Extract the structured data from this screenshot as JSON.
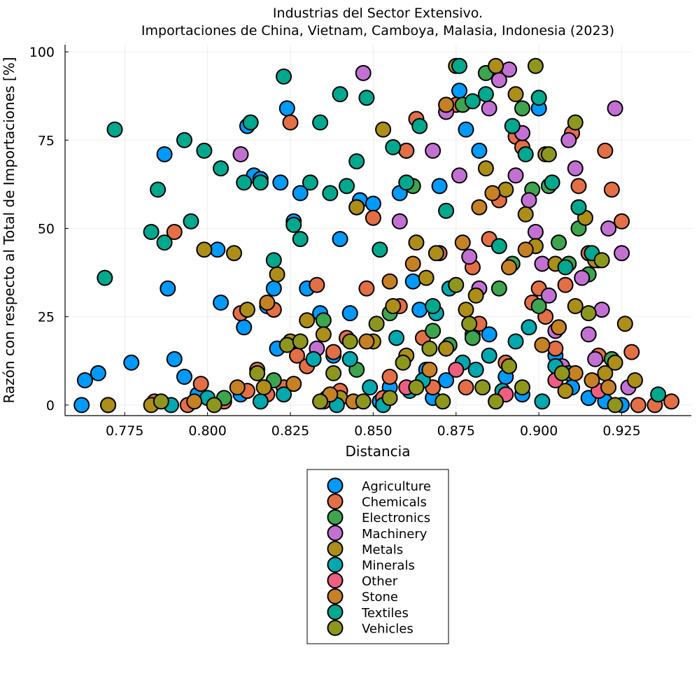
{
  "chart_data": {
    "type": "scatter",
    "title": "Industrias del Sector Extensivo.",
    "subtitle": "Importaciones de China, Vietnam, Camboya, Malasia, Indonesia (2023)",
    "xlabel": "Distancia",
    "ylabel": "Razón con respecto al Total de Importaciones [%]",
    "xlim": [
      0.757,
      0.946
    ],
    "ylim": [
      -3,
      102
    ],
    "xticks": [
      0.775,
      0.8,
      0.825,
      0.85,
      0.875,
      0.9,
      0.925
    ],
    "xtick_labels": [
      "0.775",
      "0.800",
      "0.825",
      "0.850",
      "0.875",
      "0.900",
      "0.925"
    ],
    "yticks": [
      0,
      25,
      50,
      75,
      100
    ],
    "ytick_labels": [
      "0",
      "25",
      "50",
      "75",
      "100"
    ],
    "grid": true,
    "legend_position": "bottom",
    "series": [
      {
        "name": "Agriculture",
        "color": "#009AFA",
        "x": [
          0.762,
          0.763,
          0.767,
          0.777,
          0.787,
          0.788,
          0.79,
          0.793,
          0.797,
          0.803,
          0.804,
          0.81,
          0.811,
          0.812,
          0.814,
          0.816,
          0.818,
          0.82,
          0.821,
          0.822,
          0.824,
          0.826,
          0.828,
          0.83,
          0.834,
          0.836,
          0.838,
          0.84,
          0.843,
          0.846,
          0.85,
          0.852,
          0.855,
          0.858,
          0.86,
          0.862,
          0.864,
          0.866,
          0.868,
          0.87,
          0.872,
          0.876,
          0.878,
          0.88,
          0.882,
          0.885,
          0.89,
          0.895,
          0.9,
          0.905,
          0.91,
          0.915,
          0.92,
          0.925
        ],
        "y": [
          0,
          7,
          9,
          12,
          71,
          33,
          13,
          8,
          3,
          44,
          29,
          3,
          22,
          79,
          65,
          64,
          28,
          33,
          16,
          63,
          84,
          52,
          60,
          33,
          26,
          2,
          14,
          47,
          26,
          58,
          57,
          1,
          5,
          60,
          72,
          35,
          27,
          10,
          2,
          62,
          7,
          89,
          78,
          20,
          72,
          20,
          8,
          3,
          84,
          14,
          5,
          2,
          1,
          0
        ]
      },
      {
        "name": "Chemicals",
        "color": "#E26F46",
        "x": [
          0.77,
          0.784,
          0.79,
          0.794,
          0.798,
          0.805,
          0.81,
          0.812,
          0.815,
          0.818,
          0.82,
          0.823,
          0.825,
          0.827,
          0.83,
          0.833,
          0.835,
          0.838,
          0.84,
          0.842,
          0.845,
          0.848,
          0.85,
          0.853,
          0.855,
          0.858,
          0.86,
          0.863,
          0.865,
          0.868,
          0.87,
          0.872,
          0.875,
          0.878,
          0.88,
          0.882,
          0.885,
          0.888,
          0.89,
          0.893,
          0.895,
          0.898,
          0.9,
          0.902,
          0.905,
          0.908,
          0.91,
          0.912,
          0.915,
          0.918,
          0.92,
          0.922,
          0.925,
          0.928,
          0.93,
          0.935,
          0.94
        ],
        "y": [
          0,
          1,
          49,
          0,
          6,
          1,
          26,
          4,
          10,
          3,
          27,
          5,
          80,
          14,
          11,
          34,
          1,
          15,
          4,
          19,
          56,
          33,
          53,
          2,
          8,
          28,
          72,
          81,
          19,
          5,
          43,
          16,
          85,
          5,
          39,
          23,
          47,
          58,
          12,
          76,
          73,
          29,
          33,
          25,
          16,
          34,
          77,
          62,
          43,
          14,
          72,
          61,
          52,
          15,
          0,
          0,
          1
        ]
      },
      {
        "name": "Electronics",
        "color": "#3EA44E",
        "x": [
          0.805,
          0.82,
          0.835,
          0.845,
          0.855,
          0.862,
          0.868,
          0.873,
          0.877,
          0.88,
          0.884,
          0.888,
          0.892,
          0.895,
          0.898,
          0.9,
          0.903,
          0.906,
          0.909,
          0.912,
          0.915,
          0.918,
          0.922
        ],
        "y": [
          2,
          7,
          24,
          10,
          26,
          62,
          21,
          17,
          85,
          19,
          94,
          33,
          40,
          84,
          61,
          28,
          62,
          46,
          40,
          50,
          37,
          41,
          13
        ]
      },
      {
        "name": "Machinery",
        "color": "#C271D2",
        "x": [
          0.81,
          0.833,
          0.847,
          0.858,
          0.868,
          0.872,
          0.876,
          0.879,
          0.882,
          0.885,
          0.888,
          0.891,
          0.893,
          0.895,
          0.897,
          0.899,
          0.901,
          0.903,
          0.905,
          0.907,
          0.909,
          0.911,
          0.913,
          0.915,
          0.917,
          0.919,
          0.921,
          0.923,
          0.925,
          0.927
        ],
        "y": [
          71,
          16,
          94,
          52,
          72,
          83,
          65,
          42,
          33,
          84,
          92,
          95,
          65,
          77,
          58,
          49,
          40,
          31,
          21,
          11,
          75,
          67,
          36,
          20,
          13,
          27,
          50,
          84,
          43,
          5
        ]
      },
      {
        "name": "Metals",
        "color": "#AC8E18",
        "x": [
          0.77,
          0.783,
          0.799,
          0.808,
          0.812,
          0.817,
          0.821,
          0.825,
          0.83,
          0.835,
          0.84,
          0.845,
          0.85,
          0.853,
          0.856,
          0.86,
          0.863,
          0.866,
          0.869,
          0.872,
          0.875,
          0.878,
          0.881,
          0.884,
          0.887,
          0.89,
          0.893,
          0.896,
          0.899,
          0.902,
          0.905,
          0.908,
          0.911,
          0.914,
          0.917,
          0.92,
          0.923,
          0.926,
          0.929
        ],
        "y": [
          0,
          0,
          44,
          43,
          27,
          5,
          37,
          18,
          24,
          20,
          2,
          56,
          18,
          78,
          28,
          14,
          46,
          36,
          43,
          16,
          96,
          27,
          31,
          67,
          96,
          61,
          88,
          54,
          45,
          71,
          40,
          4,
          28,
          53,
          41,
          9,
          12,
          23,
          7
        ]
      },
      {
        "name": "Minerals",
        "color": "#00A9AD",
        "x": [
          0.789,
          0.8,
          0.816,
          0.823,
          0.832,
          0.839,
          0.843,
          0.849,
          0.853,
          0.857,
          0.861,
          0.865,
          0.869,
          0.873,
          0.877,
          0.881,
          0.885,
          0.889,
          0.893,
          0.897,
          0.901,
          0.905,
          0.909
        ],
        "y": [
          0,
          2,
          1,
          3,
          13,
          0,
          13,
          5,
          0,
          19,
          4,
          7,
          26,
          33,
          12,
          10,
          14,
          4,
          18,
          22,
          1,
          11,
          9
        ]
      },
      {
        "name": "Other",
        "color": "#EC5F81",
        "x": [
          0.86,
          0.875,
          0.89,
          0.905,
          0.918
        ],
        "y": [
          5,
          10,
          3,
          7,
          4
        ]
      },
      {
        "name": "Stone",
        "color": "#C68125",
        "x": [
          0.796,
          0.809,
          0.818,
          0.826,
          0.837,
          0.844,
          0.848,
          0.855,
          0.862,
          0.867,
          0.872,
          0.877,
          0.882,
          0.886,
          0.891,
          0.896,
          0.901,
          0.906,
          0.911,
          0.916,
          0.921
        ],
        "y": [
          1,
          5,
          29,
          6,
          3,
          1,
          18,
          35,
          40,
          10,
          85,
          46,
          56,
          60,
          39,
          44,
          17,
          22,
          9,
          7,
          5
        ]
      },
      {
        "name": "Textiles",
        "color": "#00A98D",
        "x": [
          0.769,
          0.772,
          0.783,
          0.785,
          0.787,
          0.793,
          0.795,
          0.799,
          0.804,
          0.811,
          0.813,
          0.816,
          0.82,
          0.823,
          0.826,
          0.828,
          0.831,
          0.834,
          0.837,
          0.84,
          0.842,
          0.845,
          0.848,
          0.852,
          0.856,
          0.86,
          0.864,
          0.868,
          0.872,
          0.876,
          0.88,
          0.884,
          0.888,
          0.892,
          0.896,
          0.9,
          0.904,
          0.908,
          0.912,
          0.916,
          0.936
        ],
        "y": [
          36,
          78,
          49,
          61,
          46,
          75,
          52,
          72,
          67,
          63,
          80,
          63,
          41,
          93,
          51,
          47,
          63,
          80,
          60,
          88,
          62,
          69,
          87,
          44,
          73,
          63,
          79,
          28,
          55,
          96,
          86,
          88,
          45,
          79,
          71,
          87,
          63,
          39,
          56,
          43,
          3
        ]
      },
      {
        "name": "Vehicles",
        "color": "#8E971D",
        "x": [
          0.786,
          0.802,
          0.815,
          0.824,
          0.828,
          0.834,
          0.838,
          0.843,
          0.847,
          0.851,
          0.855,
          0.859,
          0.863,
          0.867,
          0.871,
          0.875,
          0.879,
          0.883,
          0.887,
          0.891,
          0.895,
          0.899,
          0.903,
          0.907,
          0.911,
          0.915,
          0.919,
          0.923
        ],
        "y": [
          1,
          0,
          9,
          17,
          18,
          1,
          9,
          18,
          1,
          23,
          2,
          12,
          5,
          16,
          1,
          34,
          23,
          5,
          1,
          11,
          5,
          96,
          71,
          9,
          80,
          26,
          41,
          0
        ]
      }
    ]
  }
}
